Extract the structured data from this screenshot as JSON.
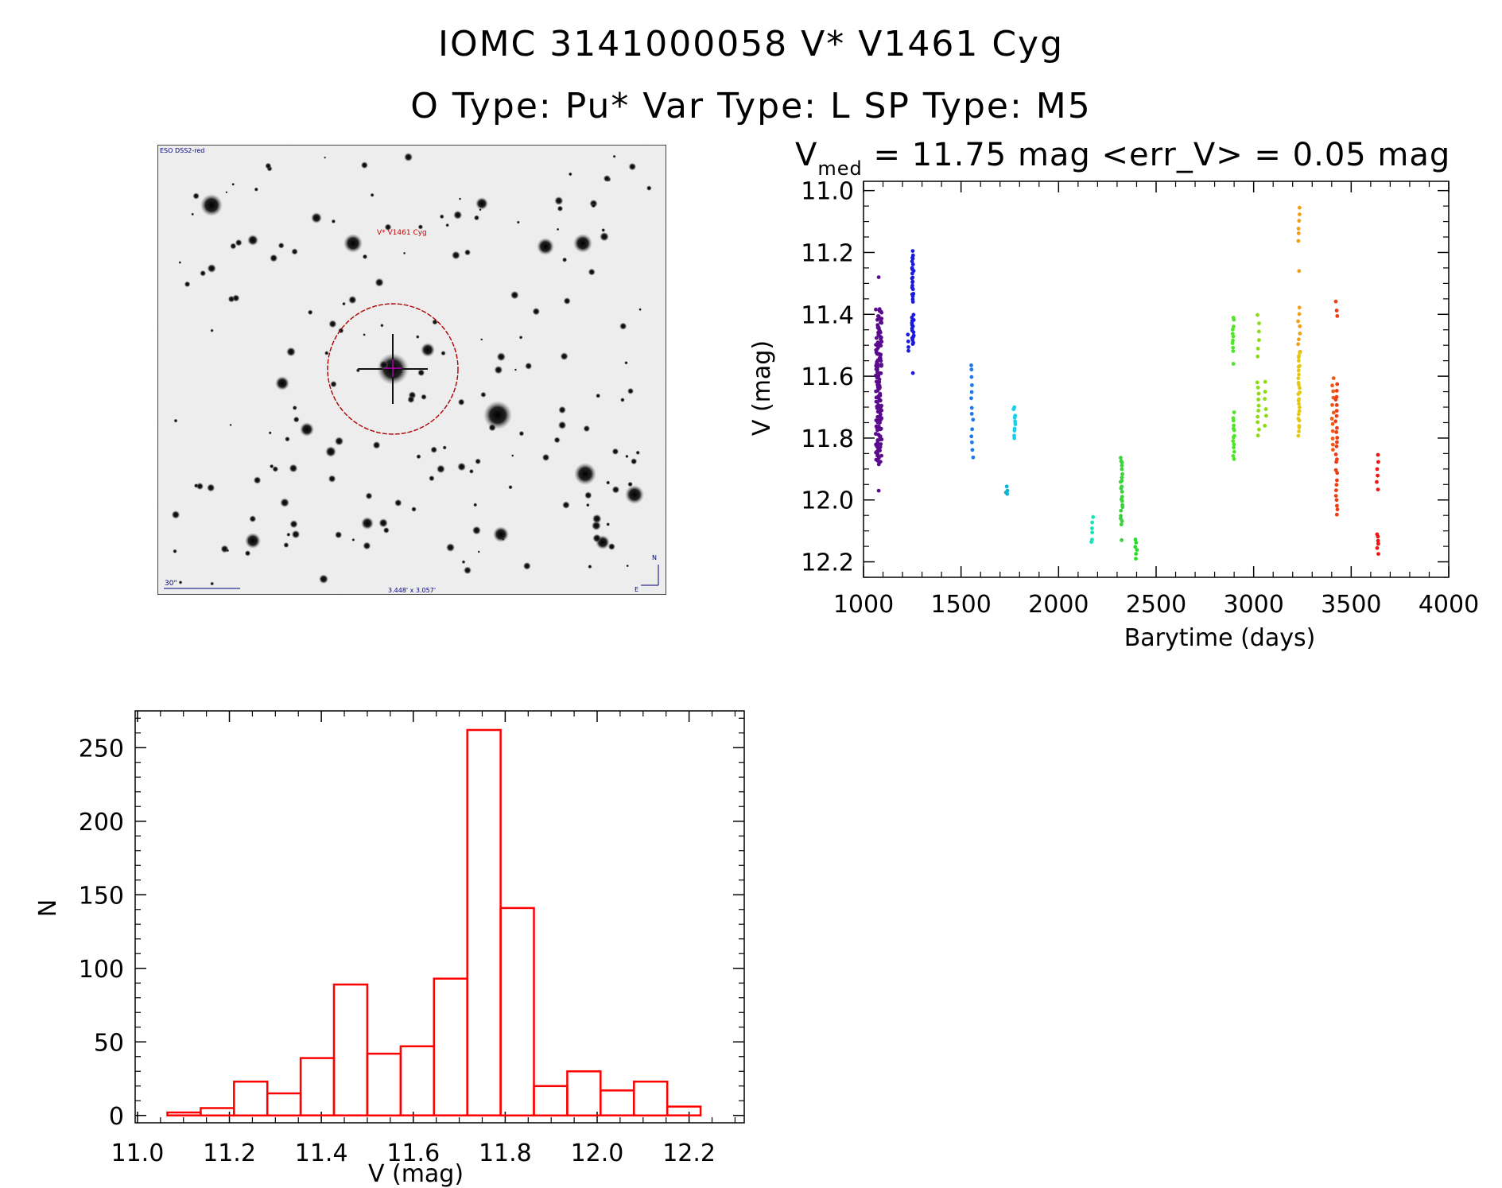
{
  "titles": {
    "line1": "IOMC 3141000058    V* V1461 Cyg",
    "line2": "O Type: Pu*  Var Type: L  SP Type: M5"
  },
  "finder": {
    "survey_label": "ESO DSS2-red",
    "target_label": "V* V1461 Cyg",
    "scale_label": "30\"",
    "fov_label": "3.448' x 3.057'",
    "north_label": "N",
    "east_label": "E",
    "colors": {
      "circle": "#b00000",
      "text": "#000080",
      "target_text": "#cc0000"
    }
  },
  "chart_data": [
    {
      "type": "scatter",
      "title_prefix": "V",
      "title_sub": "med",
      "title_rest": " = 11.75 mag <err_V> = 0.05 mag",
      "xlabel": "Barytime (days)",
      "ylabel": "V (mag)",
      "xlim": [
        1000,
        4000
      ],
      "ylim": [
        12.25,
        10.97
      ],
      "y_inverted": true,
      "xticks": [
        1000,
        1500,
        2000,
        2500,
        3000,
        3500,
        4000
      ],
      "xtick_labels": [
        "1000",
        "1500",
        "2000",
        "2500",
        "3000",
        "3500",
        "4000"
      ],
      "yticks": [
        11.0,
        11.2,
        11.4,
        11.6,
        11.8,
        12.0,
        12.2
      ],
      "ytick_labels": [
        "11.0",
        "11.2",
        "11.4",
        "11.6",
        "11.8",
        "12.0",
        "12.2"
      ],
      "groups": [
        {
          "x": 1078,
          "ymin": 11.38,
          "ymax": 11.88,
          "n": 140,
          "color": "#5a0a8c",
          "extra": [
            11.28,
            11.97
          ]
        },
        {
          "x": 1253,
          "ymin": 11.2,
          "ymax": 11.36,
          "n": 22,
          "color": "#1a1adc",
          "extra": []
        },
        {
          "x": 1253,
          "ymin": 11.4,
          "ymax": 11.5,
          "n": 16,
          "color": "#1a1adc",
          "extra": [
            11.59
          ]
        },
        {
          "x": 1232,
          "ymin": 11.47,
          "ymax": 11.52,
          "n": 4,
          "color": "#1a1adc",
          "extra": []
        },
        {
          "x": 1557,
          "ymin": 11.56,
          "ymax": 11.86,
          "n": 14,
          "color": "#1e78e6",
          "extra": []
        },
        {
          "x": 1735,
          "ymin": 11.96,
          "ymax": 11.98,
          "n": 4,
          "color": "#10b4d2",
          "extra": []
        },
        {
          "x": 1773,
          "ymin": 11.7,
          "ymax": 11.8,
          "n": 10,
          "color": "#14d0ec",
          "extra": []
        },
        {
          "x": 2172,
          "ymin": 12.06,
          "ymax": 12.14,
          "n": 6,
          "color": "#14e6b4",
          "extra": []
        },
        {
          "x": 2323,
          "ymin": 11.86,
          "ymax": 12.08,
          "n": 22,
          "color": "#3cd23c",
          "extra": [
            12.13
          ]
        },
        {
          "x": 2398,
          "ymin": 12.13,
          "ymax": 12.19,
          "n": 6,
          "color": "#28dc28",
          "extra": []
        },
        {
          "x": 2896,
          "ymin": 11.41,
          "ymax": 11.52,
          "n": 10,
          "color": "#50e628",
          "extra": [
            11.56
          ]
        },
        {
          "x": 2896,
          "ymin": 11.72,
          "ymax": 11.87,
          "n": 14,
          "color": "#50e628",
          "extra": []
        },
        {
          "x": 3023,
          "ymin": 11.4,
          "ymax": 11.54,
          "n": 6,
          "color": "#8cdc14",
          "extra": []
        },
        {
          "x": 3023,
          "ymin": 11.62,
          "ymax": 11.79,
          "n": 10,
          "color": "#8cdc14",
          "extra": []
        },
        {
          "x": 3060,
          "ymin": 11.62,
          "ymax": 11.76,
          "n": 6,
          "color": "#8cdc14",
          "extra": []
        },
        {
          "x": 3233,
          "ymin": 11.06,
          "ymax": 11.16,
          "n": 6,
          "color": "#f0a014",
          "extra": [
            11.26
          ]
        },
        {
          "x": 3233,
          "ymin": 11.38,
          "ymax": 11.52,
          "n": 8,
          "color": "#f0a014",
          "extra": []
        },
        {
          "x": 3233,
          "ymin": 11.52,
          "ymax": 11.79,
          "n": 26,
          "color": "#e6c814",
          "extra": []
        },
        {
          "x": 3405,
          "ymin": 11.61,
          "ymax": 11.84,
          "n": 12,
          "color": "#f05a14",
          "extra": []
        },
        {
          "x": 3425,
          "ymin": 11.36,
          "ymax": 11.41,
          "n": 3,
          "color": "#f03c14",
          "extra": []
        },
        {
          "x": 3425,
          "ymin": 11.63,
          "ymax": 12.05,
          "n": 26,
          "color": "#f03c14",
          "extra": []
        },
        {
          "x": 3635,
          "ymin": 11.85,
          "ymax": 11.97,
          "n": 6,
          "color": "#f01414",
          "extra": []
        },
        {
          "x": 3635,
          "ymin": 12.11,
          "ymax": 12.17,
          "n": 6,
          "color": "#f01414",
          "extra": []
        }
      ]
    },
    {
      "type": "bar",
      "style": "histogram-outline",
      "xlabel": "V (mag)",
      "ylabel": "N",
      "xlim": [
        10.995,
        12.32
      ],
      "ylim": [
        -5,
        275
      ],
      "xticks": [
        11.0,
        11.2,
        11.4,
        11.6,
        11.8,
        12.0,
        12.2
      ],
      "xtick_labels": [
        "11.0",
        "11.2",
        "11.4",
        "11.6",
        "11.8",
        "12.0",
        "12.2"
      ],
      "yticks": [
        0,
        50,
        100,
        150,
        200,
        250
      ],
      "ytick_labels": [
        "0",
        "50",
        "100",
        "150",
        "200",
        "250"
      ],
      "bin_start": 11.065,
      "bin_width": 0.0725,
      "values": [
        2,
        5,
        23,
        15,
        39,
        89,
        42,
        47,
        93,
        262,
        141,
        20,
        30,
        17,
        23,
        6
      ],
      "color": "#ff0000"
    }
  ]
}
